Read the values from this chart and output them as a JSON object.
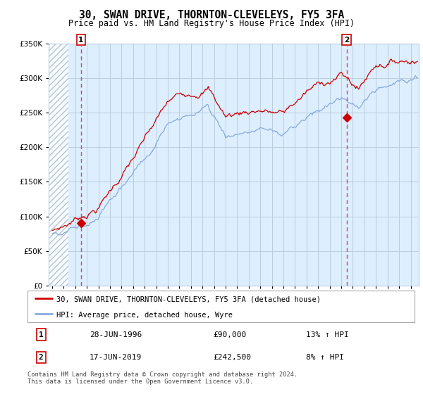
{
  "title": "30, SWAN DRIVE, THORNTON-CLEVELEYS, FY5 3FA",
  "subtitle": "Price paid vs. HM Land Registry's House Price Index (HPI)",
  "legend_entry1": "30, SWAN DRIVE, THORNTON-CLEVELEYS, FY5 3FA (detached house)",
  "legend_entry2": "HPI: Average price, detached house, Wyre",
  "table_row1_num": "1",
  "table_row1_date": "28-JUN-1996",
  "table_row1_price": "£90,000",
  "table_row1_hpi": "13% ↑ HPI",
  "table_row2_num": "2",
  "table_row2_date": "17-JUN-2019",
  "table_row2_price": "£242,500",
  "table_row2_hpi": "8% ↑ HPI",
  "footnote": "Contains HM Land Registry data © Crown copyright and database right 2024.\nThis data is licensed under the Open Government Licence v3.0.",
  "sale1_year": 1996.49,
  "sale1_price": 90000,
  "sale2_year": 2019.46,
  "sale2_price": 242500,
  "ylim": [
    0,
    350000
  ],
  "xlim_start": 1993.7,
  "xlim_end": 2025.7,
  "hatch_start": 1993.7,
  "hatch_end": 1995.4,
  "red_line_color": "#cc0000",
  "blue_line_color": "#88aadd",
  "sale_dot_color": "#cc0000",
  "vline_color": "#dd4444",
  "grid_color": "#bbccdd",
  "hatch_color": "#aabbcc",
  "plot_bg": "#ddeeff",
  "fig_bg": "#ffffff",
  "title_fontsize": 10.5,
  "subtitle_fontsize": 8.5,
  "tick_fontsize": 7.5
}
